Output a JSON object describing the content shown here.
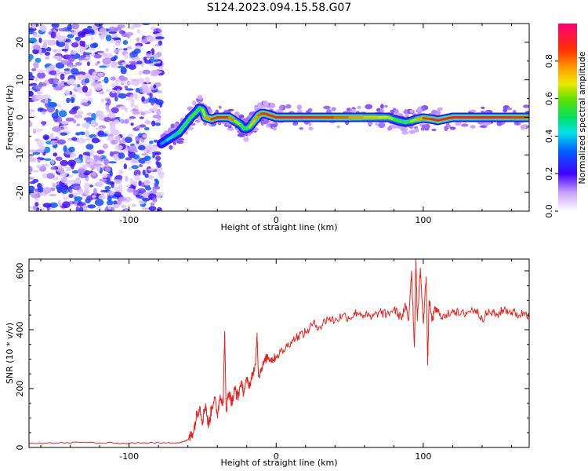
{
  "title": "S124.2023.094.15.58.G07",
  "chart_data": [
    {
      "type": "heatmap",
      "title": "S124.2023.094.15.58.G07",
      "xlabel": "Height of straight line (km)",
      "ylabel": "Frequency (Hz)",
      "xlim": [
        -168,
        172
      ],
      "ylim": [
        -25,
        25
      ],
      "x_ticks": [
        -100,
        0,
        100
      ],
      "y_ticks": [
        -20,
        -10,
        0,
        10,
        20
      ],
      "noise_region": {
        "x_range": [
          -168,
          -78
        ],
        "y_range": [
          -25,
          25
        ],
        "amplitude_range": [
          0.05,
          0.35
        ]
      },
      "ridge": {
        "x": [
          -78,
          -74,
          -70,
          -66,
          -62,
          -58,
          -54,
          -52,
          -50,
          -48,
          -44,
          -40,
          -36,
          -32,
          -28,
          -24,
          -22,
          -20,
          -18,
          -16,
          -14,
          -12,
          -10,
          -8,
          -6,
          -4,
          -2,
          0,
          10,
          20,
          30,
          40,
          50,
          60,
          70,
          76,
          80,
          84,
          88,
          92,
          96,
          100,
          106,
          110,
          120,
          130,
          140,
          150,
          160,
          172
        ],
        "freq": [
          -7,
          -6,
          -5,
          -4,
          -2,
          0,
          1.5,
          2.5,
          2,
          0,
          -0.5,
          0,
          0,
          0,
          -1,
          -2,
          -3,
          -3,
          -2.5,
          -1.5,
          -0.5,
          0.5,
          1,
          1,
          0.8,
          0.5,
          0.3,
          0,
          0,
          0,
          0,
          0,
          0,
          0,
          0,
          0,
          -0.5,
          -1,
          -1.3,
          -1,
          -0.5,
          -0.2,
          -0.5,
          -0.8,
          0,
          0,
          0,
          0,
          0,
          0
        ],
        "amplitude": [
          0.35,
          0.4,
          0.45,
          0.5,
          0.55,
          0.55,
          0.6,
          0.5,
          0.6,
          0.7,
          0.85,
          0.9,
          0.9,
          0.9,
          0.7,
          0.6,
          0.55,
          0.55,
          0.6,
          0.7,
          0.75,
          0.8,
          0.85,
          0.9,
          0.9,
          0.9,
          0.9,
          0.95,
          0.95,
          0.95,
          0.9,
          0.85,
          0.8,
          0.75,
          0.7,
          0.7,
          0.6,
          0.55,
          0.55,
          0.6,
          0.7,
          0.8,
          0.9,
          0.9,
          0.95,
          0.95,
          0.95,
          0.95,
          0.9,
          0.85
        ]
      },
      "colorbar": {
        "label": "Normalized spectral amplitude",
        "range": [
          0,
          1
        ],
        "ticks": [
          0.0,
          0.2,
          0.4,
          0.6,
          0.8
        ],
        "tick_labels": [
          "0.0",
          "0.2",
          "0.4",
          "0.6",
          "0.8"
        ]
      }
    },
    {
      "type": "line",
      "xlabel": "Height of straight line (km)",
      "ylabel": "SNR (10 * v/v)",
      "xlim": [
        -168,
        172
      ],
      "ylim": [
        0,
        640
      ],
      "x_ticks": [
        -100,
        0,
        100
      ],
      "y_ticks": [
        0,
        200,
        400,
        600
      ],
      "series": [
        {
          "color": "#e8231c",
          "x": [
            -168,
            -150,
            -130,
            -110,
            -90,
            -75,
            -65,
            -60,
            -58,
            -56,
            -54,
            -52,
            -50,
            -48,
            -46,
            -44,
            -42,
            -40,
            -38,
            -36,
            -35,
            -34,
            -32,
            -30,
            -28,
            -26,
            -24,
            -22,
            -20,
            -18,
            -16,
            -14,
            -13,
            -12,
            -10,
            -8,
            -6,
            -4,
            -2,
            0,
            5,
            10,
            15,
            20,
            25,
            30,
            35,
            40,
            45,
            50,
            55,
            60,
            65,
            70,
            75,
            80,
            85,
            88,
            90,
            92,
            94,
            95,
            96,
            98,
            100,
            102,
            103,
            104,
            106,
            108,
            110,
            115,
            120,
            125,
            130,
            135,
            140,
            145,
            150,
            155,
            160,
            165,
            170,
            172
          ],
          "y": [
            15,
            15,
            17,
            14,
            16,
            15,
            18,
            25,
            40,
            60,
            110,
            140,
            90,
            150,
            70,
            130,
            170,
            110,
            180,
            150,
            395,
            130,
            190,
            150,
            200,
            170,
            220,
            190,
            230,
            210,
            250,
            280,
            390,
            240,
            270,
            290,
            310,
            300,
            300,
            310,
            330,
            360,
            380,
            390,
            420,
            410,
            440,
            430,
            450,
            440,
            460,
            450,
            440,
            460,
            450,
            470,
            440,
            480,
            430,
            600,
            340,
            640,
            430,
            610,
            420,
            580,
            280,
            500,
            430,
            470,
            460,
            440,
            470,
            450,
            460,
            470,
            440,
            460,
            450,
            470,
            460,
            450,
            460,
            440
          ]
        }
      ]
    }
  ]
}
